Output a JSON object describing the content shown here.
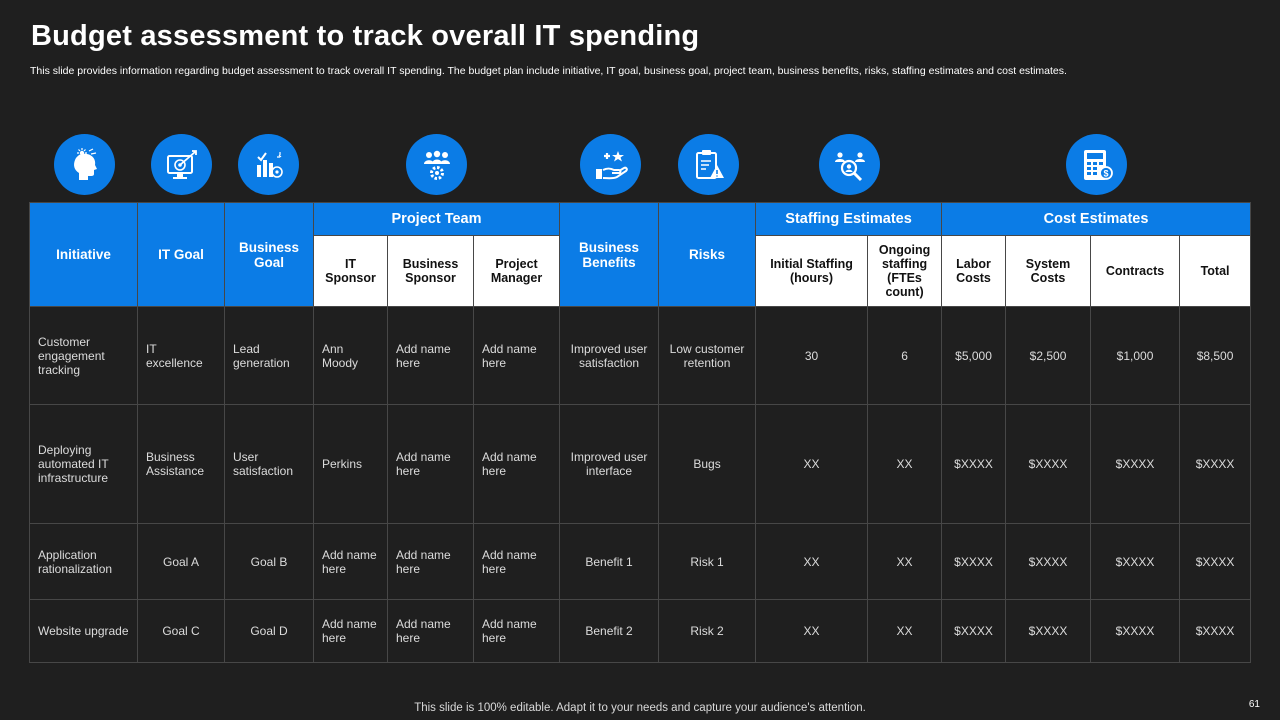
{
  "title": "Budget assessment to track overall IT spending",
  "subtitle": "This slide provides information regarding budget assessment to track overall IT spending. The budget plan include initiative, IT goal, business goal, project team, business benefits, risks, staffing estimates and cost estimates.",
  "icons": [
    "idea-head-icon",
    "target-monitor-icon",
    "goal-chart-icon",
    "team-gear-icon",
    "benefit-hand-icon",
    "risk-clipboard-icon",
    "staff-search-icon",
    "calculator-icon"
  ],
  "table": {
    "headers": {
      "initiative": "Initiative",
      "it_goal": "IT Goal",
      "business_goal": "Business Goal",
      "project_team": "Project Team",
      "it_sponsor": "IT Sponsor",
      "business_sponsor": "Business Sponsor",
      "project_manager": "Project Manager",
      "business_benefits": "Business Benefits",
      "risks": "Risks",
      "staffing_estimates": "Staffing Estimates",
      "initial_staffing": "Initial Staffing (hours)",
      "ongoing_staffing": "Ongoing staffing (FTEs count)",
      "cost_estimates": "Cost Estimates",
      "labor_costs": "Labor Costs",
      "system_costs": "System Costs",
      "contracts": "Contracts",
      "total": "Total"
    },
    "rows": [
      [
        "Customer engagement tracking",
        "IT excellence",
        "Lead generation",
        "Ann Moody",
        "Add name here",
        "Add name here",
        "Improved user satisfaction",
        "Low customer retention",
        "30",
        "6",
        "$5,000",
        "$2,500",
        "$1,000",
        "$8,500"
      ],
      [
        "Deploying automated IT infrastructure",
        "Business Assistance",
        "User satisfaction",
        "Perkins",
        "Add name here",
        "Add name here",
        "Improved user interface",
        "Bugs",
        "XX",
        "XX",
        "$XXXX",
        "$XXXX",
        "$XXXX",
        "$XXXX"
      ],
      [
        "Application rationalization",
        "Goal A",
        "Goal B",
        "Add name here",
        "Add name here",
        "Add name here",
        "Benefit 1",
        "Risk 1",
        "XX",
        "XX",
        "$XXXX",
        "$XXXX",
        "$XXXX",
        "$XXXX"
      ],
      [
        "Website upgrade",
        "Goal C",
        "Goal D",
        "Add name here",
        "Add name here",
        "Add name here",
        "Benefit 2",
        "Risk 2",
        "XX",
        "XX",
        "$XXXX",
        "$XXXX",
        "$XXXX",
        "$XXXX"
      ]
    ]
  },
  "footer": "This slide is 100% editable. Adapt it to your needs and capture your audience's attention.",
  "page_number": "61",
  "colors": {
    "accent": "#0b7ce6",
    "background": "#1f1f1f",
    "border": "#474747"
  }
}
